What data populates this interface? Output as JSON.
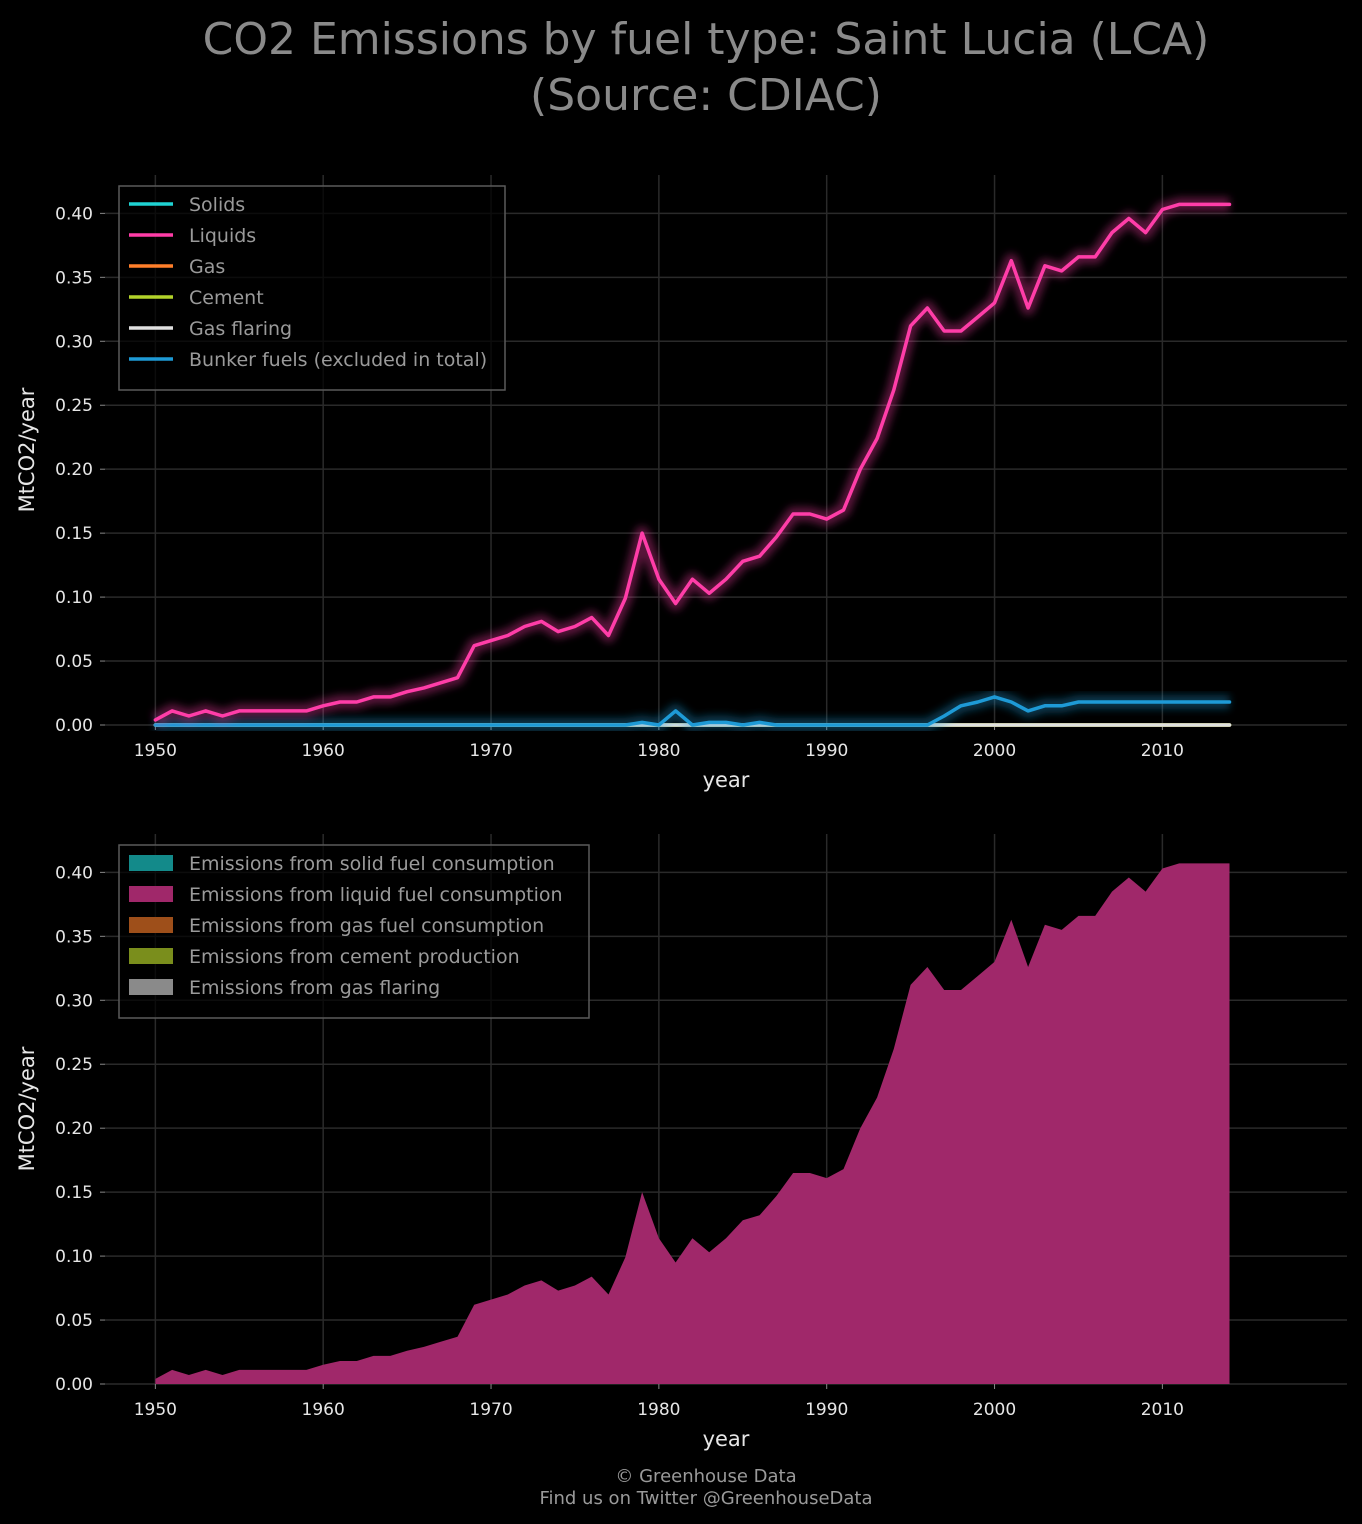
{
  "title_line1": "CO2 Emissions by fuel type: Saint Lucia (LCA)",
  "title_line2": "(Source: CDIAC)",
  "footer_line1": "© Greenhouse Data",
  "footer_line2": "Find us on Twitter @GreenhouseData",
  "colors": {
    "background": "#000000",
    "grid": "#2a2a2a",
    "solids": "#1fd3d3",
    "liquids": "#ff3da8",
    "gas": "#ff7f2a",
    "cement": "#b3d32a",
    "gas_flaring": "#e0e0e0",
    "bunker": "#1e9ad6",
    "area_solid": "#138a8a",
    "area_liquid": "#a0286a",
    "area_gas": "#9e4f1a",
    "area_cement": "#7a8e1c",
    "area_flaring": "#8a8a8a"
  },
  "chart_data": [
    {
      "type": "line",
      "xlabel": "year",
      "ylabel": "MtCO2/year",
      "xlim": [
        1947,
        2021
      ],
      "ylim": [
        0,
        0.43
      ],
      "xticks": [
        "1950",
        "1960",
        "1970",
        "1980",
        "1990",
        "2000",
        "2010"
      ],
      "yticks": [
        "0.00",
        "0.05",
        "0.10",
        "0.15",
        "0.20",
        "0.25",
        "0.30",
        "0.35",
        "0.40"
      ],
      "grid": true,
      "legend_position": "top-left",
      "x": [
        1950,
        1951,
        1952,
        1953,
        1954,
        1955,
        1956,
        1957,
        1958,
        1959,
        1960,
        1961,
        1962,
        1963,
        1964,
        1965,
        1966,
        1967,
        1968,
        1969,
        1970,
        1971,
        1972,
        1973,
        1974,
        1975,
        1976,
        1977,
        1978,
        1979,
        1980,
        1981,
        1982,
        1983,
        1984,
        1985,
        1986,
        1987,
        1988,
        1989,
        1990,
        1991,
        1992,
        1993,
        1994,
        1995,
        1996,
        1997,
        1998,
        1999,
        2000,
        2001,
        2002,
        2003,
        2004,
        2005,
        2006,
        2007,
        2008,
        2009,
        2010,
        2011,
        2012,
        2013,
        2014
      ],
      "series": [
        {
          "name": "Solids",
          "color_key": "solids",
          "values": [
            0,
            0,
            0,
            0,
            0,
            0,
            0,
            0,
            0,
            0,
            0,
            0,
            0,
            0,
            0,
            0,
            0,
            0,
            0,
            0,
            0,
            0,
            0,
            0,
            0,
            0,
            0,
            0,
            0,
            0,
            0,
            0,
            0,
            0,
            0,
            0,
            0,
            0,
            0,
            0,
            0,
            0,
            0,
            0,
            0,
            0,
            0,
            0,
            0,
            0,
            0,
            0,
            0,
            0,
            0,
            0,
            0,
            0,
            0,
            0,
            0,
            0,
            0,
            0,
            0
          ]
        },
        {
          "name": "Liquids",
          "color_key": "liquids",
          "values": [
            0.004,
            0.011,
            0.007,
            0.011,
            0.007,
            0.011,
            0.011,
            0.011,
            0.011,
            0.011,
            0.015,
            0.018,
            0.018,
            0.022,
            0.022,
            0.026,
            0.029,
            0.033,
            0.037,
            0.062,
            0.066,
            0.07,
            0.077,
            0.081,
            0.073,
            0.077,
            0.084,
            0.07,
            0.099,
            0.15,
            0.114,
            0.095,
            0.114,
            0.103,
            0.114,
            0.128,
            0.132,
            0.147,
            0.165,
            0.165,
            0.161,
            0.168,
            0.2,
            0.224,
            0.262,
            0.312,
            0.326,
            0.308,
            0.308,
            0.319,
            0.33,
            0.363,
            0.326,
            0.359,
            0.355,
            0.366,
            0.366,
            0.385,
            0.396,
            0.385,
            0.403,
            0.407,
            0.407,
            0.407,
            0.407
          ]
        },
        {
          "name": "Gas",
          "color_key": "gas",
          "values": [
            0,
            0,
            0,
            0,
            0,
            0,
            0,
            0,
            0,
            0,
            0,
            0,
            0,
            0,
            0,
            0,
            0,
            0,
            0,
            0,
            0,
            0,
            0,
            0,
            0,
            0,
            0,
            0,
            0,
            0,
            0,
            0,
            0,
            0,
            0,
            0,
            0,
            0,
            0,
            0,
            0,
            0,
            0,
            0,
            0,
            0,
            0,
            0,
            0,
            0,
            0,
            0,
            0,
            0,
            0,
            0,
            0,
            0,
            0,
            0,
            0,
            0,
            0,
            0,
            0
          ]
        },
        {
          "name": "Cement",
          "color_key": "cement",
          "values": [
            0,
            0,
            0,
            0,
            0,
            0,
            0,
            0,
            0,
            0,
            0,
            0,
            0,
            0,
            0,
            0,
            0,
            0,
            0,
            0,
            0,
            0,
            0,
            0,
            0,
            0,
            0,
            0,
            0,
            0,
            0,
            0,
            0,
            0,
            0,
            0,
            0,
            0,
            0,
            0,
            0,
            0,
            0,
            0,
            0,
            0,
            0,
            0,
            0,
            0,
            0,
            0,
            0,
            0,
            0,
            0,
            0,
            0,
            0,
            0,
            0,
            0,
            0,
            0,
            0
          ]
        },
        {
          "name": "Gas flaring",
          "color_key": "gas_flaring",
          "values": [
            0,
            0,
            0,
            0,
            0,
            0,
            0,
            0,
            0,
            0,
            0,
            0,
            0,
            0,
            0,
            0,
            0,
            0,
            0,
            0,
            0,
            0,
            0,
            0,
            0,
            0,
            0,
            0,
            0,
            0,
            0,
            0,
            0,
            0,
            0,
            0,
            0,
            0,
            0,
            0,
            0,
            0,
            0,
            0,
            0,
            0,
            0,
            0,
            0,
            0,
            0,
            0,
            0,
            0,
            0,
            0,
            0,
            0,
            0,
            0,
            0,
            0,
            0,
            0,
            0
          ]
        },
        {
          "name": "Bunker fuels (excluded in total)",
          "color_key": "bunker",
          "values": [
            0,
            0,
            0,
            0,
            0,
            0,
            0,
            0,
            0,
            0,
            0,
            0,
            0,
            0,
            0,
            0,
            0,
            0,
            0,
            0,
            0,
            0,
            0,
            0,
            0,
            0,
            0,
            0,
            0,
            0.002,
            0,
            0.011,
            0,
            0.002,
            0.002,
            0,
            0.002,
            0,
            0,
            0,
            0,
            0,
            0,
            0,
            0,
            0,
            0,
            0.007,
            0.015,
            0.018,
            0.022,
            0.018,
            0.011,
            0.015,
            0.015,
            0.018,
            0.018,
            0.018,
            0.018,
            0.018,
            0.018,
            0.018,
            0.018,
            0.018,
            0.018
          ]
        }
      ]
    },
    {
      "type": "area",
      "stacked": true,
      "xlabel": "year",
      "ylabel": "MtCO2/year",
      "xlim": [
        1947,
        2021
      ],
      "ylim": [
        0,
        0.43
      ],
      "xticks": [
        "1950",
        "1960",
        "1970",
        "1980",
        "1990",
        "2000",
        "2010"
      ],
      "yticks": [
        "0.00",
        "0.05",
        "0.10",
        "0.15",
        "0.20",
        "0.25",
        "0.30",
        "0.35",
        "0.40"
      ],
      "grid": true,
      "legend_position": "top-left",
      "x": [
        1950,
        1951,
        1952,
        1953,
        1954,
        1955,
        1956,
        1957,
        1958,
        1959,
        1960,
        1961,
        1962,
        1963,
        1964,
        1965,
        1966,
        1967,
        1968,
        1969,
        1970,
        1971,
        1972,
        1973,
        1974,
        1975,
        1976,
        1977,
        1978,
        1979,
        1980,
        1981,
        1982,
        1983,
        1984,
        1985,
        1986,
        1987,
        1988,
        1989,
        1990,
        1991,
        1992,
        1993,
        1994,
        1995,
        1996,
        1997,
        1998,
        1999,
        2000,
        2001,
        2002,
        2003,
        2004,
        2005,
        2006,
        2007,
        2008,
        2009,
        2010,
        2011,
        2012,
        2013,
        2014
      ],
      "series": [
        {
          "name": "Emissions from solid fuel consumption",
          "color_key": "area_solid",
          "values": [
            0,
            0,
            0,
            0,
            0,
            0,
            0,
            0,
            0,
            0,
            0,
            0,
            0,
            0,
            0,
            0,
            0,
            0,
            0,
            0,
            0,
            0,
            0,
            0,
            0,
            0,
            0,
            0,
            0,
            0,
            0,
            0,
            0,
            0,
            0,
            0,
            0,
            0,
            0,
            0,
            0,
            0,
            0,
            0,
            0,
            0,
            0,
            0,
            0,
            0,
            0,
            0,
            0,
            0,
            0,
            0,
            0,
            0,
            0,
            0,
            0,
            0,
            0,
            0,
            0
          ]
        },
        {
          "name": "Emissions from liquid fuel consumption",
          "color_key": "area_liquid",
          "values": [
            0.004,
            0.011,
            0.007,
            0.011,
            0.007,
            0.011,
            0.011,
            0.011,
            0.011,
            0.011,
            0.015,
            0.018,
            0.018,
            0.022,
            0.022,
            0.026,
            0.029,
            0.033,
            0.037,
            0.062,
            0.066,
            0.07,
            0.077,
            0.081,
            0.073,
            0.077,
            0.084,
            0.07,
            0.099,
            0.15,
            0.114,
            0.095,
            0.114,
            0.103,
            0.114,
            0.128,
            0.132,
            0.147,
            0.165,
            0.165,
            0.161,
            0.168,
            0.2,
            0.224,
            0.262,
            0.312,
            0.326,
            0.308,
            0.308,
            0.319,
            0.33,
            0.363,
            0.326,
            0.359,
            0.355,
            0.366,
            0.366,
            0.385,
            0.396,
            0.385,
            0.403,
            0.407,
            0.407,
            0.407,
            0.407
          ]
        },
        {
          "name": "Emissions from gas fuel consumption",
          "color_key": "area_gas",
          "values": [
            0,
            0,
            0,
            0,
            0,
            0,
            0,
            0,
            0,
            0,
            0,
            0,
            0,
            0,
            0,
            0,
            0,
            0,
            0,
            0,
            0,
            0,
            0,
            0,
            0,
            0,
            0,
            0,
            0,
            0,
            0,
            0,
            0,
            0,
            0,
            0,
            0,
            0,
            0,
            0,
            0,
            0,
            0,
            0,
            0,
            0,
            0,
            0,
            0,
            0,
            0,
            0,
            0,
            0,
            0,
            0,
            0,
            0,
            0,
            0,
            0,
            0,
            0,
            0,
            0
          ]
        },
        {
          "name": "Emissions from cement production",
          "color_key": "area_cement",
          "values": [
            0,
            0,
            0,
            0,
            0,
            0,
            0,
            0,
            0,
            0,
            0,
            0,
            0,
            0,
            0,
            0,
            0,
            0,
            0,
            0,
            0,
            0,
            0,
            0,
            0,
            0,
            0,
            0,
            0,
            0,
            0,
            0,
            0,
            0,
            0,
            0,
            0,
            0,
            0,
            0,
            0,
            0,
            0,
            0,
            0,
            0,
            0,
            0,
            0,
            0,
            0,
            0,
            0,
            0,
            0,
            0,
            0,
            0,
            0,
            0,
            0,
            0,
            0,
            0,
            0
          ]
        },
        {
          "name": "Emissions from gas flaring",
          "color_key": "area_flaring",
          "values": [
            0,
            0,
            0,
            0,
            0,
            0,
            0,
            0,
            0,
            0,
            0,
            0,
            0,
            0,
            0,
            0,
            0,
            0,
            0,
            0,
            0,
            0,
            0,
            0,
            0,
            0,
            0,
            0,
            0,
            0,
            0,
            0,
            0,
            0,
            0,
            0,
            0,
            0,
            0,
            0,
            0,
            0,
            0,
            0,
            0,
            0,
            0,
            0,
            0,
            0,
            0,
            0,
            0,
            0,
            0,
            0,
            0,
            0,
            0,
            0,
            0,
            0,
            0,
            0,
            0
          ]
        }
      ]
    }
  ]
}
